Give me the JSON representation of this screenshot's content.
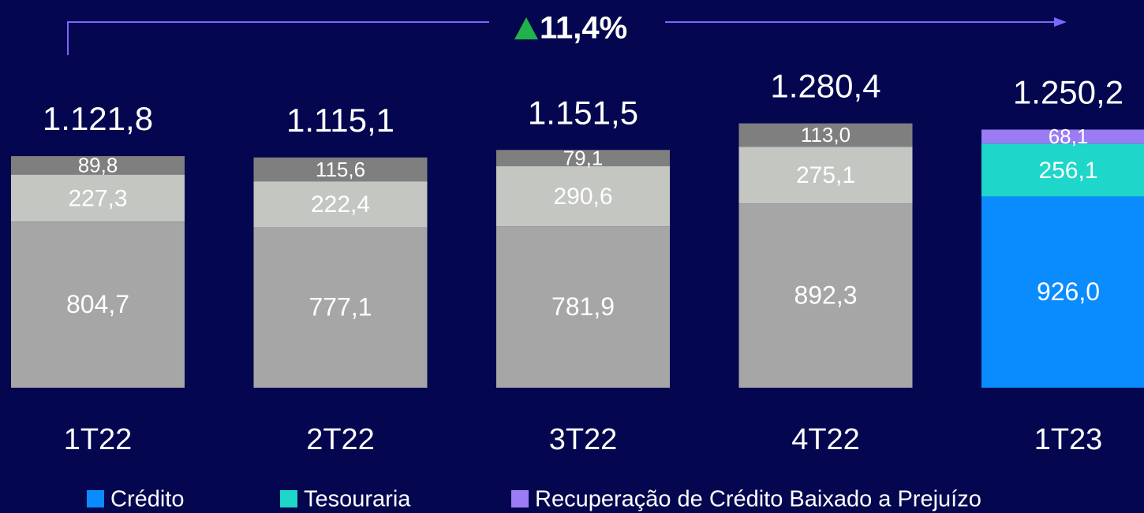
{
  "chart_data": {
    "type": "stacked_bar",
    "annotation": "11,4%",
    "categories": [
      "1T22",
      "2T22",
      "3T22",
      "4T22",
      "1T23"
    ],
    "series": [
      {
        "name": "Crédito",
        "color": "#0a8cff",
        "colors": [
          "#a6a6a6",
          "#a6a6a6",
          "#a6a6a6",
          "#a6a6a6",
          "#0a8cff"
        ],
        "values": [
          804.7,
          777.1,
          781.9,
          892.3,
          926.0
        ],
        "value_labels": [
          "804,7",
          "777,1",
          "781,9",
          "892,3",
          "926,0"
        ]
      },
      {
        "name": "Tesouraria",
        "color": "#1ed6c9",
        "colors": [
          "#c4c6c2",
          "#c4c6c2",
          "#c4c6c2",
          "#c4c6c2",
          "#1ed6c9"
        ],
        "values": [
          227.3,
          222.4,
          290.6,
          275.1,
          256.1
        ],
        "value_labels": [
          "227,3",
          "222,4",
          "290,6",
          "275,1",
          "256,1"
        ]
      },
      {
        "name": "Recuperação de Crédito Baixado a Prejuízo",
        "color": "#9b7cf4",
        "colors": [
          "#7f7f7f",
          "#7f7f7f",
          "#7f7f7f",
          "#7f7f7f",
          "#9b7cf4"
        ],
        "values": [
          89.8,
          115.6,
          79.1,
          113.0,
          68.1
        ],
        "value_labels": [
          "89,8",
          "115,6",
          "79,1",
          "113,0",
          "68,1"
        ]
      }
    ],
    "totals": [
      1121.8,
      1115.1,
      1151.5,
      1280.4,
      1250.2
    ],
    "total_labels": [
      "1.121,8",
      "1.115,1",
      "1.151,5",
      "1.280,4",
      "1.250,2"
    ]
  }
}
